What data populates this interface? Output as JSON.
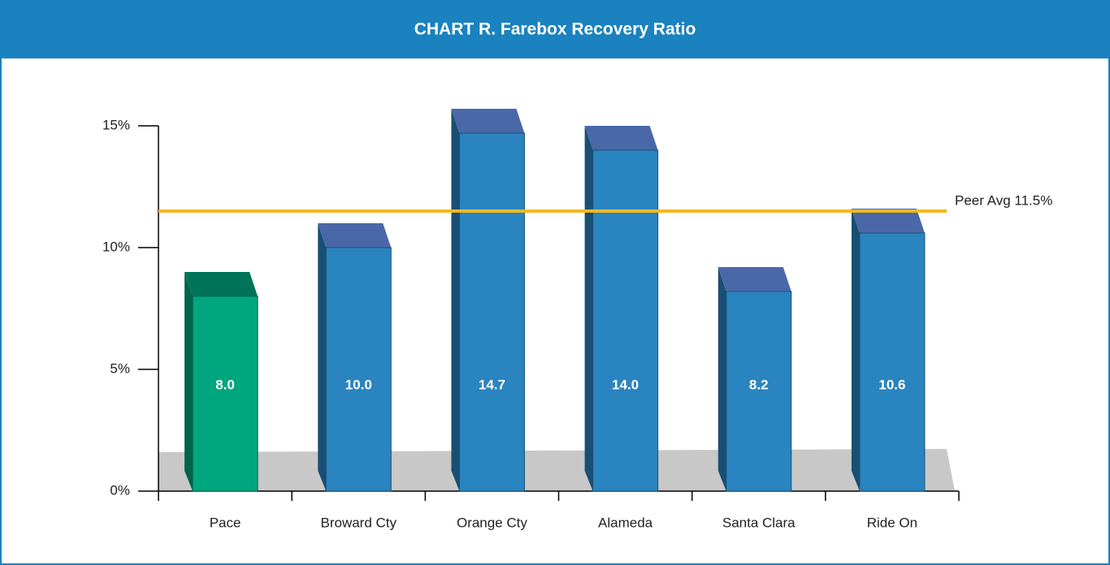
{
  "chart_data": {
    "type": "bar3d",
    "title": "CHART R.  Farebox Recovery Ratio",
    "categories": [
      "Pace",
      "Broward Cty",
      "Orange Cty",
      "Alameda",
      "Santa Clara",
      "Ride On"
    ],
    "values": [
      8.0,
      10.0,
      14.7,
      14.0,
      8.2,
      10.6
    ],
    "value_labels": [
      "8.0",
      "10.0",
      "14.7",
      "14.0",
      "8.2",
      "10.6"
    ],
    "colors": [
      "#00a67e",
      "#2a84bf",
      "#2a84bf",
      "#2a84bf",
      "#2a84bf",
      "#2a84bf"
    ],
    "ylim": [
      0,
      15
    ],
    "yticks": [
      {
        "value": 0,
        "label": "0%"
      },
      {
        "value": 5,
        "label": "5%"
      },
      {
        "value": 10,
        "label": "10%"
      },
      {
        "value": 15,
        "label": "15%"
      }
    ],
    "reference_line": {
      "value": 11.5,
      "label": "Peer Avg 11.5%",
      "color": "#f5b81e"
    }
  }
}
